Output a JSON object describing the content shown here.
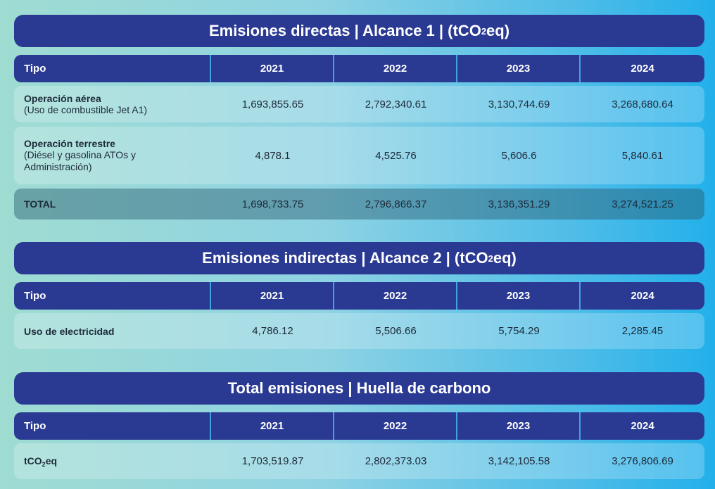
{
  "columns": {
    "tipo": "Tipo",
    "years": [
      "2021",
      "2022",
      "2023",
      "2024"
    ]
  },
  "section1": {
    "title_pre": "Emisiones directas | Alcance 1 | (tCO",
    "title_sub": "2",
    "title_post": "eq)",
    "rows": [
      {
        "label": "Operación aérea",
        "sub": "(Uso de combustible Jet A1)",
        "values": [
          "1,693,855.65",
          "2,792,340.61",
          "3,130,744.69",
          "3,268,680.64"
        ]
      },
      {
        "label": "Operación terrestre",
        "sub": "(Diésel y gasolina ATOs y Administración)",
        "values": [
          "4,878.1",
          "4,525.76",
          "5,606.6",
          "5,840.61"
        ]
      }
    ],
    "total": {
      "label": "TOTAL",
      "values": [
        "1,698,733.75",
        "2,796,866.37",
        "3,136,351.29",
        "3,274,521.25"
      ]
    }
  },
  "section2": {
    "title_pre": "Emisiones indirectas | Alcance 2 | (tCO",
    "title_sub": "2",
    "title_post": "eq)",
    "row": {
      "label": "Uso de electricidad",
      "values": [
        "4,786.12",
        "5,506.66",
        "5,754.29",
        "2,285.45"
      ]
    }
  },
  "section3": {
    "title": "Total emisiones | Huella de carbono",
    "row": {
      "label_pre": "tCO",
      "label_sub": "2",
      "label_post": "eq",
      "values": [
        "1,703,519.87",
        "2,802,373.03",
        "3,142,105.58",
        "3,276,806.69"
      ]
    }
  }
}
